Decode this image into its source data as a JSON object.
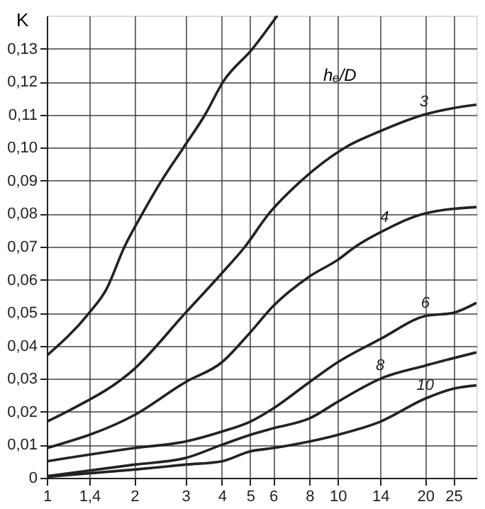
{
  "chart_data": {
    "type": "line",
    "ylabel": "K",
    "annotations": [
      "hₑ/D"
    ],
    "log": "x",
    "grid": true,
    "marker": "none",
    "line_style": "solid",
    "xlim": [
      1,
      30
    ],
    "ylim": [
      0,
      0.14
    ],
    "xticks": [
      1,
      {
        "value": 1.4,
        "label": "1,4"
      },
      2,
      3,
      4,
      5,
      6,
      8,
      10,
      14,
      20,
      25
    ],
    "yticks": [
      0,
      {
        "value": 0.01,
        "label": "0,01"
      },
      {
        "value": 0.02,
        "label": "0,02"
      },
      {
        "value": 0.03,
        "label": "0,03"
      },
      {
        "value": 0.04,
        "label": "0,04"
      },
      {
        "value": 0.05,
        "label": "0,05"
      },
      {
        "value": 0.06,
        "label": "0,06"
      },
      {
        "value": 0.07,
        "label": "0,07"
      },
      {
        "value": 0.08,
        "label": "0,08"
      },
      {
        "value": 0.09,
        "label": "0,09"
      },
      {
        "value": 0.1,
        "label": "0,10"
      },
      {
        "value": 0.11,
        "label": "0,11"
      },
      {
        "value": 0.12,
        "label": "0,12"
      },
      {
        "value": 0.13,
        "label": "0,13"
      }
    ],
    "series": [
      {
        "color": "#222222",
        "x": [
          1,
          1.4,
          1.6,
          1.85,
          2.13,
          2.48,
          2.95,
          3.5,
          4.04,
          5.1,
          6.2
        ],
        "values": [
          0.037,
          0.05,
          0.057,
          0.07,
          0.08,
          0.09,
          0.1,
          0.11,
          0.12,
          0.13,
          0.14
        ]
      },
      {
        "name": "3",
        "color": "#222222",
        "x": [
          1,
          1.17,
          2,
          3,
          4,
          4.8,
          5.8,
          7.5,
          10.6,
          14,
          19.8,
          25,
          30
        ],
        "values": [
          0.017,
          0.02,
          0.033,
          0.05,
          0.062,
          0.07,
          0.08,
          0.09,
          0.1,
          0.105,
          0.11,
          0.112,
          0.113
        ]
      },
      {
        "name": "4",
        "color": "#222222",
        "x": [
          1,
          2,
          3,
          4,
          5,
          6,
          8,
          10,
          11.5,
          14.5,
          19.8,
          30
        ],
        "values": [
          0.009,
          0.019,
          0.029,
          0.035,
          0.044,
          0.052,
          0.061,
          0.066,
          0.07,
          0.075,
          0.08,
          0.082
        ]
      },
      {
        "name": "6",
        "color": "#222222",
        "x": [
          1,
          2,
          3,
          4,
          5,
          6,
          8,
          10,
          14,
          20,
          25,
          30
        ],
        "values": [
          0.005,
          0.009,
          0.011,
          0.014,
          0.017,
          0.021,
          0.029,
          0.035,
          0.042,
          0.049,
          0.05,
          0.053
        ]
      },
      {
        "name": "8",
        "color": "#222222",
        "x": [
          1,
          2,
          3,
          4,
          5,
          6,
          8,
          10,
          14,
          20,
          30
        ],
        "values": [
          0.0005,
          0.004,
          0.006,
          0.01,
          0.013,
          0.015,
          0.018,
          0.023,
          0.03,
          0.034,
          0.038
        ]
      },
      {
        "name": "10",
        "color": "#222222",
        "x": [
          1,
          2,
          3,
          4,
          5,
          6,
          8,
          10,
          14,
          20,
          25,
          30
        ],
        "values": [
          0.0003,
          0.0025,
          0.004,
          0.005,
          0.008,
          0.009,
          0.011,
          0.013,
          0.017,
          0.024,
          0.027,
          0.028
        ]
      }
    ]
  }
}
